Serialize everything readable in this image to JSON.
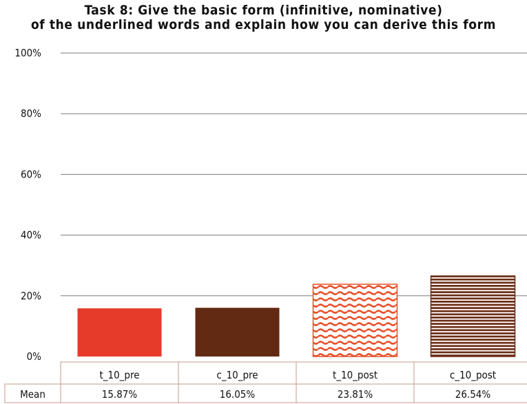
{
  "chart_data": {
    "type": "bar",
    "title_lines": [
      "Task 8: Give the basic form (infinitive, nominative)",
      "of the underlined words and explain how you can derive this form"
    ],
    "xlabel": "",
    "ylabel": "",
    "ylim": [
      0,
      100
    ],
    "y_ticks": [
      "0%",
      "20%",
      "40%",
      "60%",
      "80%",
      "100%"
    ],
    "grid": true,
    "categories": [
      "t_10_pre",
      "c_10_pre",
      "t_10_post",
      "c_10_post"
    ],
    "values": [
      15.87,
      16.05,
      23.81,
      26.54
    ],
    "table": {
      "row_label": "Mean",
      "cells": [
        "15.87%",
        "16.05%",
        "23.81%",
        "26.54%"
      ]
    },
    "bar_styles": [
      {
        "fill": "solid",
        "color": "#e63b2b"
      },
      {
        "fill": "solid",
        "color": "#622a12"
      },
      {
        "fill": "waves",
        "color": "#e8502a"
      },
      {
        "fill": "stripes",
        "color": "#6b2a13"
      }
    ],
    "colors": {
      "grid": "#7a7a7a",
      "table_border": "#c59a8a"
    }
  }
}
